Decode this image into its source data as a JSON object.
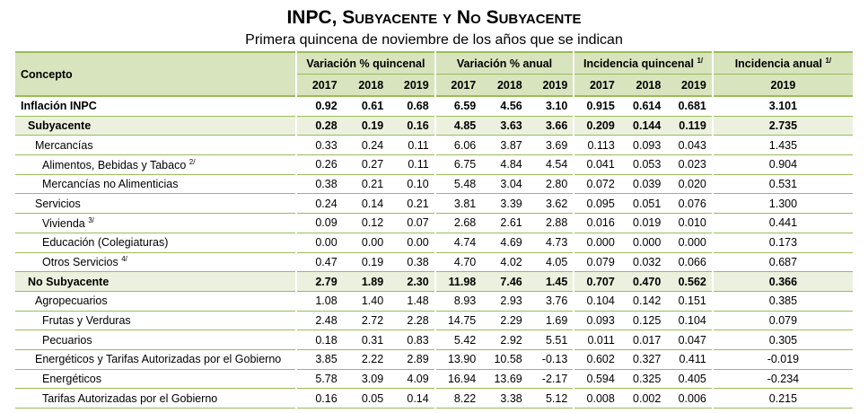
{
  "header": {
    "title": "INPC, Subyacente y No Subyacente",
    "subtitle": "Primera quincena de noviembre de los años que se indican"
  },
  "table": {
    "concept": "Concepto",
    "groups": [
      {
        "label": "Variación % quincenal",
        "years": [
          "2017",
          "2018",
          "2019"
        ]
      },
      {
        "label": "Variación % anual",
        "years": [
          "2017",
          "2018",
          "2019"
        ]
      },
      {
        "label": "Incidencia quincenal",
        "note": "1/",
        "years": [
          "2017",
          "2018",
          "2019"
        ]
      },
      {
        "label": "Incidencia anual",
        "note": "1/",
        "years": [
          "2019"
        ]
      }
    ],
    "rows": [
      {
        "label": "Inflación INPC",
        "indent": 0,
        "bold": true,
        "values": [
          "0.92",
          "0.61",
          "0.68",
          "6.59",
          "4.56",
          "3.10",
          "0.915",
          "0.614",
          "0.681",
          "3.101"
        ]
      },
      {
        "label": "Subyacente",
        "indent": 1,
        "bold": true,
        "shaded": true,
        "values": [
          "0.28",
          "0.19",
          "0.16",
          "4.85",
          "3.63",
          "3.66",
          "0.209",
          "0.144",
          "0.119",
          "2.735"
        ]
      },
      {
        "label": "Mercancías",
        "indent": 2,
        "values": [
          "0.33",
          "0.24",
          "0.11",
          "6.06",
          "3.87",
          "3.69",
          "0.113",
          "0.093",
          "0.043",
          "1.435"
        ]
      },
      {
        "label": "Alimentos, Bebidas y Tabaco",
        "note": "2/",
        "indent": 3,
        "values": [
          "0.26",
          "0.27",
          "0.11",
          "6.75",
          "4.84",
          "4.54",
          "0.041",
          "0.053",
          "0.023",
          "0.904"
        ]
      },
      {
        "label": "Mercancías no Alimenticias",
        "indent": 3,
        "values": [
          "0.38",
          "0.21",
          "0.10",
          "5.48",
          "3.04",
          "2.80",
          "0.072",
          "0.039",
          "0.020",
          "0.531"
        ]
      },
      {
        "label": "Servicios",
        "indent": 2,
        "values": [
          "0.24",
          "0.14",
          "0.21",
          "3.81",
          "3.39",
          "3.62",
          "0.095",
          "0.051",
          "0.076",
          "1.300"
        ]
      },
      {
        "label": "Vivienda",
        "note": "3/",
        "indent": 3,
        "values": [
          "0.09",
          "0.12",
          "0.07",
          "2.68",
          "2.61",
          "2.88",
          "0.016",
          "0.019",
          "0.010",
          "0.441"
        ]
      },
      {
        "label": "Educación (Colegiaturas)",
        "indent": 3,
        "values": [
          "0.00",
          "0.00",
          "0.00",
          "4.74",
          "4.69",
          "4.73",
          "0.000",
          "0.000",
          "0.000",
          "0.173"
        ]
      },
      {
        "label": "Otros Servicios",
        "note": "4/",
        "indent": 3,
        "values": [
          "0.47",
          "0.19",
          "0.38",
          "4.70",
          "4.02",
          "4.05",
          "0.079",
          "0.032",
          "0.066",
          "0.687"
        ]
      },
      {
        "label": "No Subyacente",
        "indent": 1,
        "bold": true,
        "shaded": true,
        "values": [
          "2.79",
          "1.89",
          "2.30",
          "11.98",
          "7.46",
          "1.45",
          "0.707",
          "0.470",
          "0.562",
          "0.366"
        ]
      },
      {
        "label": "Agropecuarios",
        "indent": 2,
        "values": [
          "1.08",
          "1.40",
          "1.48",
          "8.93",
          "2.93",
          "3.76",
          "0.104",
          "0.142",
          "0.151",
          "0.385"
        ]
      },
      {
        "label": "Frutas y Verduras",
        "indent": 3,
        "values": [
          "2.48",
          "2.72",
          "2.28",
          "14.75",
          "2.29",
          "1.69",
          "0.093",
          "0.125",
          "0.104",
          "0.079"
        ]
      },
      {
        "label": "Pecuarios",
        "indent": 3,
        "values": [
          "0.18",
          "0.31",
          "0.83",
          "5.42",
          "2.92",
          "5.51",
          "0.011",
          "0.017",
          "0.047",
          "0.305"
        ]
      },
      {
        "label": "Energéticos y Tarifas Autorizadas por el Gobierno",
        "indent": 2,
        "values": [
          "3.85",
          "2.22",
          "2.89",
          "13.90",
          "10.58",
          "-0.13",
          "0.602",
          "0.327",
          "0.411",
          "-0.019"
        ]
      },
      {
        "label": "Energéticos",
        "indent": 3,
        "values": [
          "5.78",
          "3.09",
          "4.09",
          "16.94",
          "13.69",
          "-2.17",
          "0.594",
          "0.325",
          "0.405",
          "-0.234"
        ]
      },
      {
        "label": "Tarifas Autorizadas por el Gobierno",
        "indent": 3,
        "values": [
          "0.16",
          "0.05",
          "0.14",
          "8.22",
          "3.38",
          "5.12",
          "0.008",
          "0.002",
          "0.006",
          "0.215"
        ]
      }
    ]
  }
}
